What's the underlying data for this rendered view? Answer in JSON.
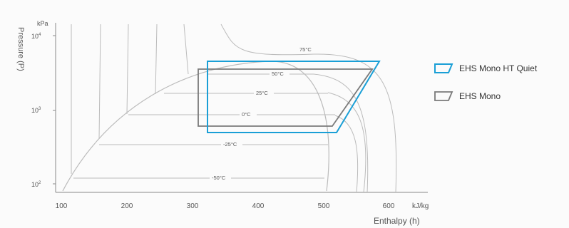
{
  "diagram": {
    "y_unit": "kPa",
    "y_label": "Pressure (P)",
    "x_unit": "kJ/kg",
    "x_label": "Enthalpy (h)",
    "x_ticks": [
      "100",
      "200",
      "300",
      "400",
      "500",
      "600"
    ],
    "y_ticks": [
      {
        "base": "10",
        "exp": "4"
      },
      {
        "base": "10",
        "exp": "3"
      },
      {
        "base": "10",
        "exp": "2"
      }
    ],
    "isotherm_labels": [
      "75°C",
      "50°C",
      "25°C",
      "0°C",
      "-25°C",
      "-50°C"
    ]
  },
  "legend": {
    "items": [
      {
        "label": "EHS Mono HT Quiet",
        "color": "#1a9fd6"
      },
      {
        "label": "EHS Mono",
        "color": "#7a7a7a"
      }
    ]
  }
}
